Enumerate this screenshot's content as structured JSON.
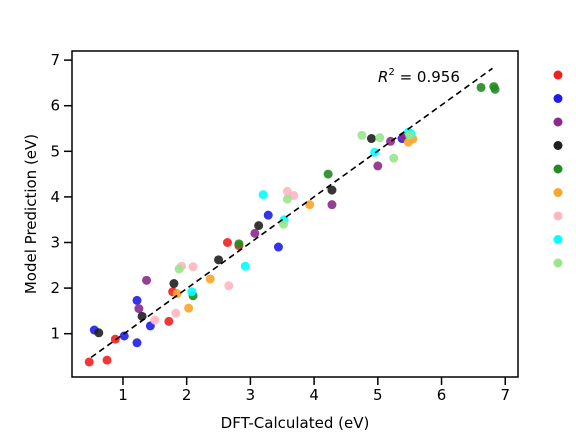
{
  "chart_data": {
    "type": "scatter",
    "title": "",
    "xlabel": "DFT-Calculated (eV)",
    "ylabel": "Model Prediction (eV)",
    "xlim": [
      0.2,
      7.2
    ],
    "ylim": [
      0.05,
      7.2
    ],
    "xticks": [
      1,
      2,
      3,
      4,
      5,
      6,
      7
    ],
    "yticks": [
      1,
      2,
      3,
      4,
      5,
      6,
      7
    ],
    "grid": false,
    "legend_position": "right",
    "annotation": {
      "base": "R",
      "sup": "2",
      "rest": " = 0.956"
    },
    "fit_line": {
      "x": [
        0.5,
        6.8
      ],
      "y": [
        0.48,
        6.82
      ],
      "style": "dashed",
      "color": "#000000"
    },
    "series": [
      {
        "color": "#f0201f",
        "points": [
          [
            0.47,
            0.38
          ],
          [
            0.75,
            0.42
          ],
          [
            0.88,
            0.88
          ],
          [
            1.72,
            1.27
          ],
          [
            1.78,
            1.92
          ],
          [
            2.64,
            3.0
          ],
          [
            2.82,
            2.93
          ]
        ]
      },
      {
        "color": "#1e1ee6",
        "points": [
          [
            0.55,
            1.08
          ],
          [
            1.02,
            0.95
          ],
          [
            1.22,
            0.8
          ],
          [
            1.22,
            1.73
          ],
          [
            1.43,
            1.17
          ],
          [
            3.28,
            3.6
          ],
          [
            3.44,
            2.9
          ],
          [
            5.38,
            5.28
          ]
        ]
      },
      {
        "color": "#8b2a8b",
        "points": [
          [
            1.25,
            1.55
          ],
          [
            1.37,
            2.17
          ],
          [
            3.07,
            3.2
          ],
          [
            4.28,
            3.83
          ],
          [
            5.0,
            4.68
          ],
          [
            5.2,
            5.22
          ],
          [
            5.4,
            5.32
          ]
        ]
      },
      {
        "color": "#202020",
        "points": [
          [
            0.62,
            1.02
          ],
          [
            1.3,
            1.38
          ],
          [
            1.8,
            2.1
          ],
          [
            2.5,
            2.62
          ],
          [
            3.13,
            3.37
          ],
          [
            4.28,
            4.15
          ],
          [
            4.9,
            5.28
          ]
        ]
      },
      {
        "color": "#228b22",
        "points": [
          [
            2.1,
            1.83
          ],
          [
            2.82,
            2.97
          ],
          [
            4.22,
            4.5
          ],
          [
            6.62,
            6.4
          ],
          [
            6.82,
            6.42
          ],
          [
            6.84,
            6.36
          ]
        ]
      },
      {
        "color": "#fba52a",
        "points": [
          [
            1.85,
            1.88
          ],
          [
            2.03,
            1.56
          ],
          [
            2.37,
            2.2
          ],
          [
            3.93,
            3.83
          ],
          [
            5.48,
            5.2
          ],
          [
            5.55,
            5.27
          ]
        ]
      },
      {
        "color": "#ffb6c1",
        "points": [
          [
            1.5,
            1.3
          ],
          [
            1.83,
            1.45
          ],
          [
            1.92,
            2.48
          ],
          [
            2.1,
            2.47
          ],
          [
            2.66,
            2.05
          ],
          [
            3.58,
            4.12
          ],
          [
            3.68,
            4.03
          ]
        ]
      },
      {
        "color": "#00ffff",
        "points": [
          [
            2.08,
            1.92
          ],
          [
            2.92,
            2.48
          ],
          [
            3.2,
            4.05
          ],
          [
            3.53,
            3.5
          ],
          [
            4.95,
            4.98
          ],
          [
            5.48,
            5.42
          ],
          [
            5.52,
            5.38
          ]
        ]
      },
      {
        "color": "#98e68c",
        "points": [
          [
            1.88,
            2.42
          ],
          [
            3.52,
            3.4
          ],
          [
            3.58,
            3.95
          ],
          [
            4.75,
            5.35
          ],
          [
            5.03,
            5.3
          ],
          [
            5.25,
            4.85
          ],
          [
            5.5,
            5.35
          ]
        ]
      }
    ]
  }
}
